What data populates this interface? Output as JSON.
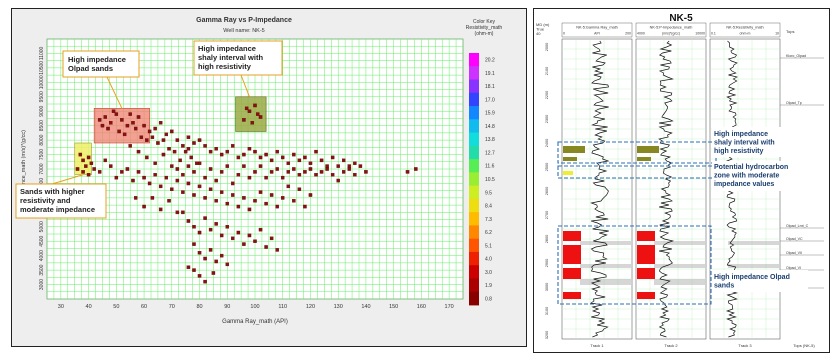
{
  "crossplot": {
    "title": "Gamma Ray vs P-Impedance",
    "subtitle": "Well name: NK-5",
    "color_key_title": "Color Key\nResistivity_math\n(ohm-m)",
    "color_key_values": [
      "20.2",
      "19.1",
      "18.1",
      "17.0",
      "15.9",
      "14.8",
      "13.8",
      "12.7",
      "11.6",
      "10.5",
      "9.5",
      "8.4",
      "7.3",
      "6.2",
      "5.1",
      "4.0",
      "3.0",
      "1.9",
      "0.8"
    ],
    "color_key_colors": [
      "#ff00ff",
      "#cc33ff",
      "#8833ff",
      "#3344ff",
      "#1188ff",
      "#11bbee",
      "#11dddd",
      "#22ddaa",
      "#55ee55",
      "#99ee33",
      "#ccee22",
      "#eedd11",
      "#ffbb00",
      "#ff8800",
      "#ff5500",
      "#ee2200",
      "#cc0000",
      "#aa0000",
      "#880000"
    ],
    "annotations": {
      "olpad": "High impedance\nOlpad sands",
      "shaly": "High impedance\nshaly interval with\nhigh resistivity",
      "sands": "Sands with higher\nresistivity and\nmoderate impedance"
    }
  },
  "chart_data": {
    "type": "scatter",
    "title": "Gamma Ray vs P-Impedance",
    "subtitle": "Well name: NK-5",
    "xlabel": "Gamma Ray_math (API)",
    "ylabel": "P-Impedance_math (m/s)*(g/cc)",
    "xlim": [
      25,
      175
    ],
    "ylim": [
      2500,
      11500
    ],
    "xticks": [
      30,
      40,
      50,
      60,
      70,
      80,
      90,
      100,
      110,
      120,
      130,
      140,
      150,
      160,
      170
    ],
    "yticks": [
      3000,
      3500,
      4000,
      4500,
      5000,
      5500,
      6000,
      6500,
      7000,
      7500,
      8000,
      8500,
      9000,
      9500,
      10000,
      10500,
      11000
    ],
    "grid": true,
    "series": [
      {
        "name": "Resistivity_math (ohm-m)",
        "points": [
          [
            44,
            8700
          ],
          [
            46,
            8800
          ],
          [
            48,
            8600
          ],
          [
            50,
            8900
          ],
          [
            52,
            8700
          ],
          [
            54,
            8500
          ],
          [
            56,
            8600
          ],
          [
            58,
            8800
          ],
          [
            47,
            8400
          ],
          [
            51,
            8300
          ],
          [
            55,
            8900
          ],
          [
            53,
            8200
          ],
          [
            57,
            8400
          ],
          [
            45,
            8500
          ],
          [
            49,
            9000
          ],
          [
            60,
            8500
          ],
          [
            62,
            8300
          ],
          [
            64,
            8400
          ],
          [
            66,
            8600
          ],
          [
            68,
            8200
          ],
          [
            61,
            8000
          ],
          [
            63,
            8100
          ],
          [
            65,
            7900
          ],
          [
            59,
            8100
          ],
          [
            67,
            8000
          ],
          [
            70,
            8300
          ],
          [
            72,
            8000
          ],
          [
            74,
            7800
          ],
          [
            71,
            7600
          ],
          [
            69,
            7700
          ],
          [
            76,
            8100
          ],
          [
            78,
            7900
          ],
          [
            80,
            8000
          ],
          [
            75,
            7600
          ],
          [
            77,
            7400
          ],
          [
            82,
            7800
          ],
          [
            84,
            7600
          ],
          [
            86,
            7700
          ],
          [
            88,
            7500
          ],
          [
            90,
            7600
          ],
          [
            92,
            7800
          ],
          [
            94,
            7400
          ],
          [
            96,
            7500
          ],
          [
            98,
            7700
          ],
          [
            100,
            7600
          ],
          [
            102,
            7400
          ],
          [
            104,
            7500
          ],
          [
            106,
            7300
          ],
          [
            108,
            7600
          ],
          [
            110,
            7400
          ],
          [
            112,
            7200
          ],
          [
            114,
            7500
          ],
          [
            116,
            7300
          ],
          [
            118,
            7400
          ],
          [
            120,
            7200
          ],
          [
            122,
            7600
          ],
          [
            124,
            7300
          ],
          [
            126,
            7000
          ],
          [
            128,
            7400
          ],
          [
            130,
            7100
          ],
          [
            132,
            7300
          ],
          [
            134,
            7000
          ],
          [
            136,
            7200
          ],
          [
            138,
            7100
          ],
          [
            140,
            6900
          ],
          [
            96,
            8700
          ],
          [
            98,
            9000
          ],
          [
            100,
            9200
          ],
          [
            102,
            8800
          ],
          [
            99,
            8600
          ],
          [
            97,
            9100
          ],
          [
            101,
            8900
          ],
          [
            37,
            7500
          ],
          [
            38,
            7300
          ],
          [
            36,
            7000
          ],
          [
            38,
            6900
          ],
          [
            39,
            7100
          ],
          [
            40,
            7400
          ],
          [
            41,
            7200
          ],
          [
            40,
            6800
          ],
          [
            42,
            7000
          ],
          [
            44,
            6900
          ],
          [
            46,
            7300
          ],
          [
            48,
            7100
          ],
          [
            50,
            6700
          ],
          [
            52,
            6900
          ],
          [
            54,
            7000
          ],
          [
            56,
            6600
          ],
          [
            58,
            6900
          ],
          [
            60,
            6700
          ],
          [
            62,
            6500
          ],
          [
            64,
            6800
          ],
          [
            66,
            6400
          ],
          [
            68,
            6700
          ],
          [
            70,
            6300
          ],
          [
            72,
            6600
          ],
          [
            74,
            6200
          ],
          [
            76,
            6500
          ],
          [
            78,
            6100
          ],
          [
            80,
            6400
          ],
          [
            82,
            6000
          ],
          [
            84,
            6300
          ],
          [
            86,
            5900
          ],
          [
            88,
            6200
          ],
          [
            90,
            5800
          ],
          [
            92,
            6100
          ],
          [
            94,
            5700
          ],
          [
            96,
            6000
          ],
          [
            98,
            5600
          ],
          [
            100,
            5900
          ],
          [
            102,
            6200
          ],
          [
            104,
            5800
          ],
          [
            106,
            6100
          ],
          [
            108,
            5700
          ],
          [
            110,
            6000
          ],
          [
            112,
            6400
          ],
          [
            114,
            5900
          ],
          [
            116,
            6300
          ],
          [
            118,
            5700
          ],
          [
            120,
            6100
          ],
          [
            74,
            5500
          ],
          [
            76,
            5200
          ],
          [
            78,
            5000
          ],
          [
            80,
            4800
          ],
          [
            82,
            5300
          ],
          [
            84,
            4900
          ],
          [
            86,
            5100
          ],
          [
            88,
            4700
          ],
          [
            90,
            5000
          ],
          [
            92,
            4600
          ],
          [
            94,
            4800
          ],
          [
            96,
            4400
          ],
          [
            98,
            4700
          ],
          [
            100,
            4500
          ],
          [
            102,
            4900
          ],
          [
            104,
            4300
          ],
          [
            106,
            4600
          ],
          [
            108,
            4200
          ],
          [
            78,
            4400
          ],
          [
            80,
            4100
          ],
          [
            82,
            3900
          ],
          [
            84,
            4200
          ],
          [
            86,
            3800
          ],
          [
            88,
            4000
          ],
          [
            90,
            3700
          ],
          [
            76,
            3600
          ],
          [
            78,
            3500
          ],
          [
            80,
            3300
          ],
          [
            82,
            3100
          ],
          [
            85,
            3400
          ],
          [
            57,
            6000
          ],
          [
            60,
            5700
          ],
          [
            63,
            6000
          ],
          [
            66,
            5600
          ],
          [
            69,
            5900
          ],
          [
            72,
            5500
          ],
          [
            72,
            7000
          ],
          [
            74,
            6800
          ],
          [
            76,
            7100
          ],
          [
            78,
            6900
          ],
          [
            80,
            7200
          ],
          [
            82,
            6700
          ],
          [
            84,
            7000
          ],
          [
            86,
            6600
          ],
          [
            88,
            6900
          ],
          [
            90,
            7100
          ],
          [
            92,
            6500
          ],
          [
            94,
            6800
          ],
          [
            96,
            7100
          ],
          [
            98,
            6700
          ],
          [
            100,
            6900
          ],
          [
            102,
            7100
          ],
          [
            104,
            6700
          ],
          [
            106,
            6900
          ],
          [
            108,
            7000
          ],
          [
            110,
            6700
          ],
          [
            112,
            6900
          ],
          [
            114,
            7000
          ],
          [
            116,
            6800
          ],
          [
            118,
            6900
          ],
          [
            120,
            7000
          ],
          [
            122,
            6800
          ],
          [
            124,
            6900
          ],
          [
            126,
            7100
          ],
          [
            128,
            6800
          ],
          [
            130,
            6600
          ],
          [
            132,
            6900
          ],
          [
            134,
            7100
          ],
          [
            136,
            6800
          ],
          [
            155,
            6900
          ],
          [
            158,
            7000
          ],
          [
            55,
            7800
          ],
          [
            58,
            7600
          ],
          [
            61,
            7400
          ],
          [
            64,
            7200
          ],
          [
            67,
            7500
          ],
          [
            70,
            7100
          ],
          [
            73,
            7300
          ],
          [
            76,
            7700
          ],
          [
            79,
            7200
          ]
        ]
      }
    ]
  },
  "welllog": {
    "title": "NK-5",
    "md_header": "MD (m)\nTrue\n40",
    "track_headers": [
      {
        "name": "NK-5:Gamma Ray_math",
        "left": "0",
        "unit": "API",
        "right": "200"
      },
      {
        "name": "NK-5:P-Impedance_math",
        "left": "4000",
        "unit": "(m/s)*(g/cc)",
        "right": "10000"
      },
      {
        "name": "NK-5:Resistivity_math",
        "left": "0.1",
        "unit": "ohm-m",
        "right": "10"
      }
    ],
    "tops_header": "Tops",
    "depth_labels": [
      "2000",
      "2100",
      "2200",
      "2300",
      "2400",
      "2500",
      "2600",
      "2700",
      "2800",
      "2900",
      "3000",
      "3100",
      "3200"
    ],
    "tops": [
      {
        "label": "Kloro_Olpad"
      },
      {
        "label": "Olpad_Tp"
      },
      {
        "label": "Olpad_Lmt_C"
      },
      {
        "label": "Olpad_VC"
      },
      {
        "label": "Olpad_VII"
      },
      {
        "label": "Olpad_VI"
      },
      {
        "label": "Top_Tp"
      }
    ],
    "footer_tracks": [
      "Track 1",
      "Track 2",
      "Track 3",
      "Tops (NK-5)"
    ],
    "annotations": {
      "shaly": "High impedance\nshaly interval with\nhigh resistivity",
      "hydro": "Potential hydrocarbon\nzone with moderate\nimpedance values",
      "olpad": "High impedance Olpad\nsands"
    }
  }
}
